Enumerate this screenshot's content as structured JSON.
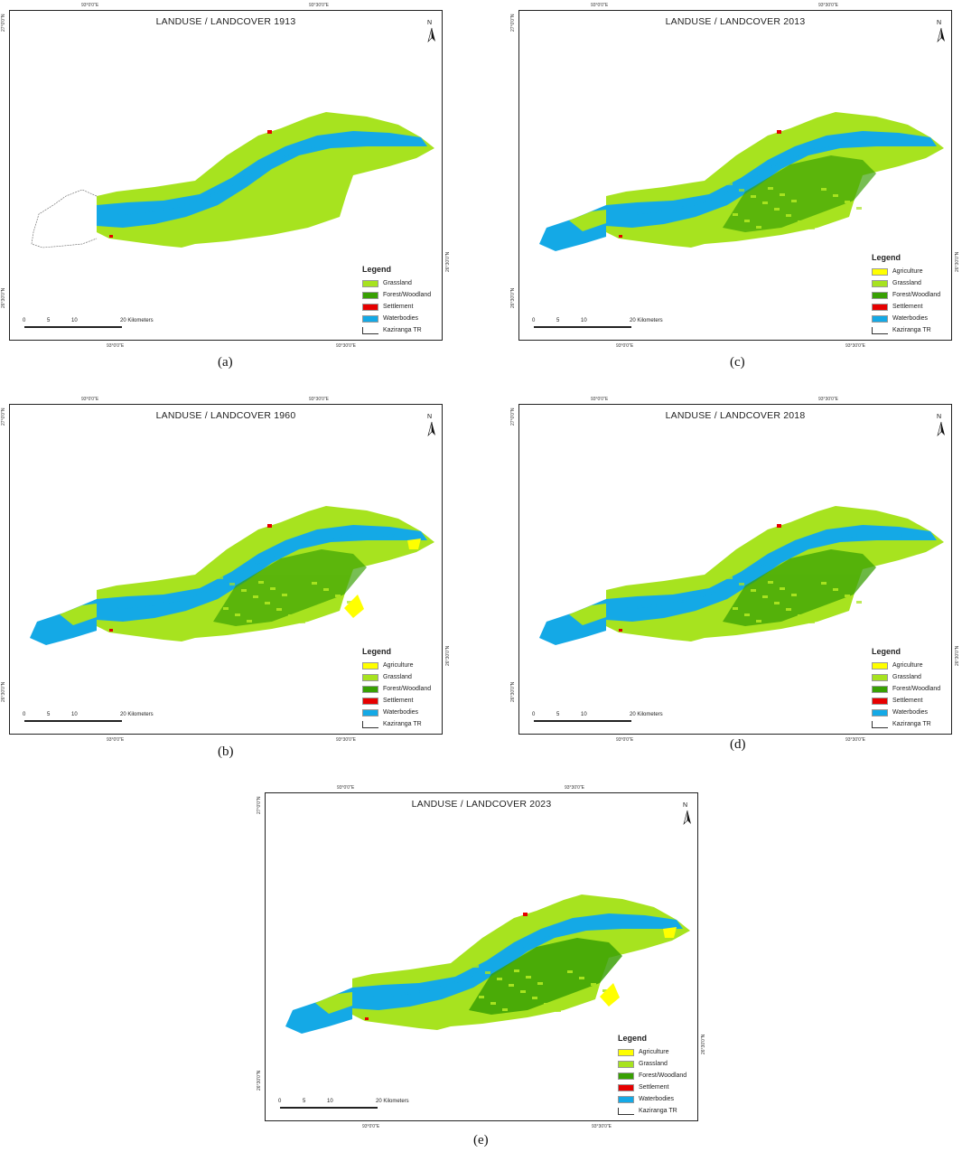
{
  "colors": {
    "agriculture": "#ffff00",
    "grassland": "#a7e31f",
    "forest": "#38a003",
    "settlement": "#e60000",
    "waterbodies": "#14a9e6",
    "outline": "#333333"
  },
  "legend_title": "Legend",
  "scale": {
    "ticks": [
      "0",
      "5",
      "10",
      "20 Kilometers"
    ]
  },
  "coords": {
    "top_left": "93°0'0\"E",
    "top_right": "93°30'0\"E",
    "bottom_left": "93°0'0\"E",
    "bottom_right": "93°30'0\"E",
    "left_top": "27°0'0\"N",
    "left_bottom": "26°30'0\"N",
    "right_mid": "26°30'0\"N"
  },
  "north_label": "N",
  "panels": [
    {
      "id": "a",
      "title": "LANDUSE / LANDCOVER 1913",
      "caption": "(a)",
      "legend": [
        "Grassland",
        "Forest/Woodland",
        "Settlement",
        "Waterbodies",
        "Kaziranga TR"
      ],
      "legend_keys": [
        "grassland",
        "forest",
        "settlement",
        "waterbodies",
        "outline"
      ]
    },
    {
      "id": "b",
      "title": "LANDUSE / LANDCOVER 1960",
      "caption": "(b)",
      "legend": [
        "Agriculture",
        "Grassland",
        "Forest/Woodland",
        "Settlement",
        "Waterbodies",
        "Kaziranga TR"
      ],
      "legend_keys": [
        "agriculture",
        "grassland",
        "forest",
        "settlement",
        "waterbodies",
        "outline"
      ]
    },
    {
      "id": "c",
      "title": "LANDUSE / LANDCOVER 2013",
      "caption": "(c)",
      "legend": [
        "Agriculture",
        "Grassland",
        "Forest/Woodland",
        "Settlement",
        "Waterbodies",
        "Kaziranga TR"
      ],
      "legend_keys": [
        "agriculture",
        "grassland",
        "forest",
        "settlement",
        "waterbodies",
        "outline"
      ]
    },
    {
      "id": "d",
      "title": "LANDUSE / LANDCOVER 2018",
      "caption": "(d)",
      "legend": [
        "Agriculture",
        "Grassland",
        "Forest/Woodland",
        "Settlement",
        "Waterbodies",
        "Kaziranga TR"
      ],
      "legend_keys": [
        "agriculture",
        "grassland",
        "forest",
        "settlement",
        "waterbodies",
        "outline"
      ]
    },
    {
      "id": "e",
      "title": "LANDUSE / LANDCOVER 2023",
      "caption": "(e)",
      "legend": [
        "Agriculture",
        "Grassland",
        "Forest/Woodland",
        "Settlement",
        "Waterbodies",
        "Kaziranga TR"
      ],
      "legend_keys": [
        "agriculture",
        "grassland",
        "forest",
        "settlement",
        "waterbodies",
        "outline"
      ]
    }
  ]
}
